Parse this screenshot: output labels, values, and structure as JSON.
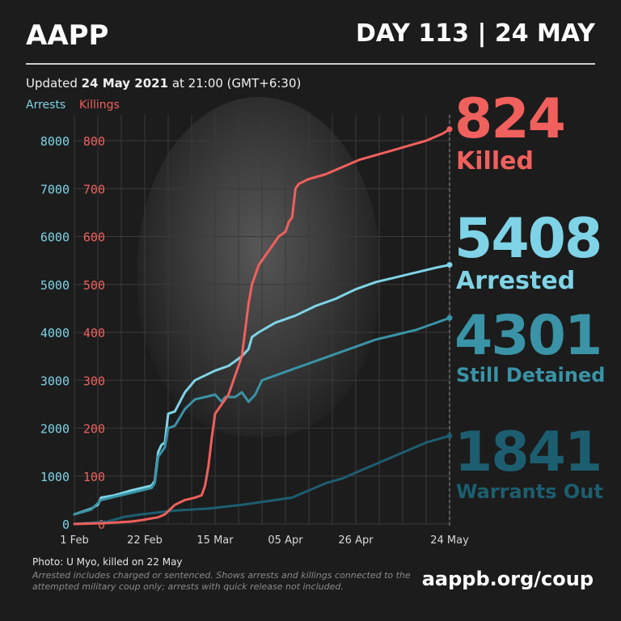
{
  "header": {
    "logo": "AAPP",
    "day": "DAY 113 | 24 MAY"
  },
  "updated": {
    "prefix": "Updated ",
    "date": "24 May 2021",
    "suffix": " at 21:00 (GMT+6:30)"
  },
  "stats": {
    "killed": {
      "value": "824",
      "label": "Killed",
      "color": "#f0605d"
    },
    "arrested": {
      "value": "5408",
      "label": "Arrested",
      "color": "#7fd3e6"
    },
    "detained": {
      "value": "4301",
      "label": "Still Detained",
      "color": "#3a93a6"
    },
    "warrants": {
      "value": "1841",
      "label": "Warrants Out",
      "color": "#1c5e70"
    }
  },
  "footer": {
    "photo_credit": "Photo: U Myo, killed on 22 May",
    "footnote": "Arrested includes charged or sentenced. Shows arrests and killings connected to the attempted military coup only; arrests with quick release not included.",
    "url": "aappb.org/coup"
  },
  "chart_data": {
    "type": "line",
    "legend": {
      "arrests": "Arrests",
      "killings": "Killings"
    },
    "x_ticks": [
      {
        "label": "1 Feb",
        "day": 0
      },
      {
        "label": "22 Feb",
        "day": 21
      },
      {
        "label": "15 Mar",
        "day": 42
      },
      {
        "label": "05 Apr",
        "day": 63
      },
      {
        "label": "26 Apr",
        "day": 84
      },
      {
        "label": "24 May",
        "day": 112
      }
    ],
    "xlim": [
      0,
      112
    ],
    "y_left_ticks": [
      0,
      1000,
      2000,
      3000,
      4000,
      5000,
      6000,
      7000,
      8000
    ],
    "y_right_ticks": [
      0,
      100,
      200,
      300,
      400,
      500,
      600,
      700,
      800
    ],
    "y_left_label": "Arrests",
    "y_right_label": "Killings",
    "ylim_left": [
      0,
      8000
    ],
    "ylim_right": [
      0,
      800
    ],
    "grid": true,
    "series": [
      {
        "name": "Arrests",
        "axis": "left",
        "color": "#7fd3e6",
        "points": [
          [
            0,
            200
          ],
          [
            5,
            320
          ],
          [
            7,
            400
          ],
          [
            8,
            550
          ],
          [
            12,
            600
          ],
          [
            17,
            700
          ],
          [
            23,
            800
          ],
          [
            24,
            900
          ],
          [
            25,
            1500
          ],
          [
            26,
            1650
          ],
          [
            27,
            1700
          ],
          [
            28,
            2300
          ],
          [
            30,
            2350
          ],
          [
            33,
            2750
          ],
          [
            36,
            3000
          ],
          [
            39,
            3100
          ],
          [
            42,
            3200
          ],
          [
            46,
            3300
          ],
          [
            48,
            3400
          ],
          [
            50,
            3500
          ],
          [
            52,
            3650
          ],
          [
            53,
            3900
          ],
          [
            55,
            4000
          ],
          [
            60,
            4200
          ],
          [
            66,
            4350
          ],
          [
            72,
            4550
          ],
          [
            78,
            4700
          ],
          [
            84,
            4900
          ],
          [
            90,
            5050
          ],
          [
            96,
            5150
          ],
          [
            102,
            5250
          ],
          [
            108,
            5350
          ],
          [
            112,
            5408
          ]
        ]
      },
      {
        "name": "Still Detained",
        "axis": "left",
        "color": "#3a93a6",
        "points": [
          [
            0,
            200
          ],
          [
            5,
            300
          ],
          [
            8,
            500
          ],
          [
            17,
            650
          ],
          [
            23,
            750
          ],
          [
            24,
            850
          ],
          [
            25,
            1400
          ],
          [
            26,
            1500
          ],
          [
            27,
            1600
          ],
          [
            28,
            2000
          ],
          [
            30,
            2050
          ],
          [
            33,
            2400
          ],
          [
            36,
            2600
          ],
          [
            39,
            2650
          ],
          [
            42,
            2700
          ],
          [
            44,
            2550
          ],
          [
            45,
            2650
          ],
          [
            48,
            2650
          ],
          [
            50,
            2750
          ],
          [
            52,
            2550
          ],
          [
            54,
            2700
          ],
          [
            56,
            3000
          ],
          [
            60,
            3100
          ],
          [
            66,
            3250
          ],
          [
            72,
            3400
          ],
          [
            78,
            3550
          ],
          [
            84,
            3700
          ],
          [
            90,
            3850
          ],
          [
            96,
            3950
          ],
          [
            102,
            4050
          ],
          [
            108,
            4200
          ],
          [
            112,
            4301
          ]
        ]
      },
      {
        "name": "Warrants Out",
        "axis": "left",
        "color": "#1c5e70",
        "points": [
          [
            0,
            0
          ],
          [
            10,
            50
          ],
          [
            15,
            150
          ],
          [
            20,
            200
          ],
          [
            30,
            280
          ],
          [
            40,
            320
          ],
          [
            50,
            400
          ],
          [
            60,
            500
          ],
          [
            65,
            550
          ],
          [
            70,
            700
          ],
          [
            75,
            850
          ],
          [
            80,
            950
          ],
          [
            85,
            1100
          ],
          [
            90,
            1250
          ],
          [
            95,
            1400
          ],
          [
            100,
            1550
          ],
          [
            105,
            1700
          ],
          [
            112,
            1841
          ]
        ]
      },
      {
        "name": "Killings",
        "axis": "right",
        "color": "#f0605d",
        "points": [
          [
            0,
            0
          ],
          [
            10,
            2
          ],
          [
            17,
            5
          ],
          [
            20,
            8
          ],
          [
            25,
            14
          ],
          [
            27,
            20
          ],
          [
            30,
            40
          ],
          [
            33,
            50
          ],
          [
            36,
            55
          ],
          [
            38,
            60
          ],
          [
            39,
            80
          ],
          [
            40,
            120
          ],
          [
            41,
            180
          ],
          [
            42,
            230
          ],
          [
            44,
            250
          ],
          [
            46,
            270
          ],
          [
            48,
            310
          ],
          [
            50,
            350
          ],
          [
            52,
            460
          ],
          [
            53,
            500
          ],
          [
            55,
            540
          ],
          [
            57,
            560
          ],
          [
            59,
            580
          ],
          [
            61,
            600
          ],
          [
            63,
            610
          ],
          [
            64,
            630
          ],
          [
            65,
            640
          ],
          [
            66,
            700
          ],
          [
            67,
            710
          ],
          [
            70,
            720
          ],
          [
            75,
            730
          ],
          [
            80,
            745
          ],
          [
            85,
            760
          ],
          [
            90,
            770
          ],
          [
            95,
            780
          ],
          [
            100,
            790
          ],
          [
            105,
            800
          ],
          [
            110,
            815
          ],
          [
            112,
            824
          ]
        ]
      }
    ]
  }
}
